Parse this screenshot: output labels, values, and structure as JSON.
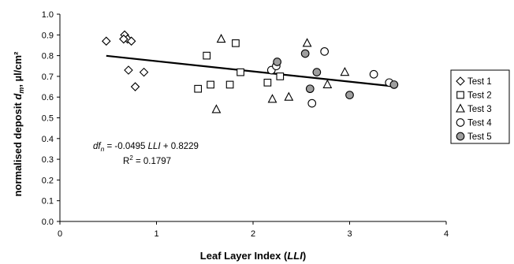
{
  "chart_data": {
    "type": "scatter",
    "xlabel": {
      "main": "Leaf Layer Index (",
      "italic": "LLI",
      "close": ")"
    },
    "ylabel": {
      "main": "normalised deposit ",
      "italic": "d",
      "sub": "m",
      "rest": ", µl/cm²"
    },
    "xlim": [
      0,
      4
    ],
    "ylim": [
      0,
      1.0
    ],
    "x_ticks": [
      0,
      1,
      2,
      3,
      4
    ],
    "x_tick_labels": [
      "0",
      "1",
      "2",
      "3",
      "4"
    ],
    "y_ticks": [
      0,
      0.1,
      0.2,
      0.3,
      0.4,
      0.5,
      0.6,
      0.7,
      0.8,
      0.9,
      1.0
    ],
    "y_tick_labels": [
      "0.0",
      "0.1",
      "0.2",
      "0.3",
      "0.4",
      "0.5",
      "0.6",
      "0.7",
      "0.8",
      "0.9",
      "1.0"
    ],
    "grid": false,
    "legend_position": "right",
    "series": [
      {
        "name": "Test 1",
        "marker": "diamond",
        "fill": "#ffffff",
        "points": [
          [
            0.48,
            0.87
          ],
          [
            0.67,
            0.9
          ],
          [
            0.7,
            0.88
          ],
          [
            0.66,
            0.88
          ],
          [
            0.74,
            0.87
          ],
          [
            0.71,
            0.73
          ],
          [
            0.87,
            0.72
          ],
          [
            0.78,
            0.65
          ]
        ]
      },
      {
        "name": "Test 2",
        "marker": "square",
        "fill": "#ffffff",
        "points": [
          [
            1.43,
            0.64
          ],
          [
            1.52,
            0.8
          ],
          [
            1.56,
            0.66
          ],
          [
            1.76,
            0.66
          ],
          [
            1.82,
            0.86
          ],
          [
            1.87,
            0.72
          ],
          [
            2.15,
            0.67
          ],
          [
            2.28,
            0.7
          ]
        ]
      },
      {
        "name": "Test 3",
        "marker": "triangle",
        "fill": "#ffffff",
        "points": [
          [
            1.67,
            0.88
          ],
          [
            1.62,
            0.54
          ],
          [
            2.2,
            0.59
          ],
          [
            2.37,
            0.6
          ],
          [
            2.56,
            0.86
          ],
          [
            2.95,
            0.72
          ],
          [
            2.77,
            0.66
          ]
        ]
      },
      {
        "name": "Test 4",
        "marker": "circle",
        "fill": "#ffffff",
        "points": [
          [
            2.19,
            0.73
          ],
          [
            2.24,
            0.75
          ],
          [
            2.61,
            0.57
          ],
          [
            2.74,
            0.82
          ],
          [
            3.25,
            0.71
          ],
          [
            3.41,
            0.67
          ]
        ]
      },
      {
        "name": "Test 5",
        "marker": "circle",
        "fill": "#9e9e9e",
        "points": [
          [
            2.25,
            0.77
          ],
          [
            2.54,
            0.81
          ],
          [
            2.59,
            0.64
          ],
          [
            2.66,
            0.72
          ],
          [
            3.0,
            0.61
          ],
          [
            3.46,
            0.66
          ]
        ]
      }
    ],
    "trendline": {
      "slope": -0.0495,
      "intercept": 0.8229,
      "x_range": [
        0.48,
        3.47
      ]
    },
    "annotation": {
      "eq_lhs_main": "df",
      "eq_lhs_sub": "n",
      "eq_mid": " = -0.0495 ",
      "eq_var": "LLI",
      "eq_rhs": " + 0.8229",
      "r2_label": "R",
      "r2_sup": "2",
      "r2_rhs": " = 0.1797"
    }
  }
}
